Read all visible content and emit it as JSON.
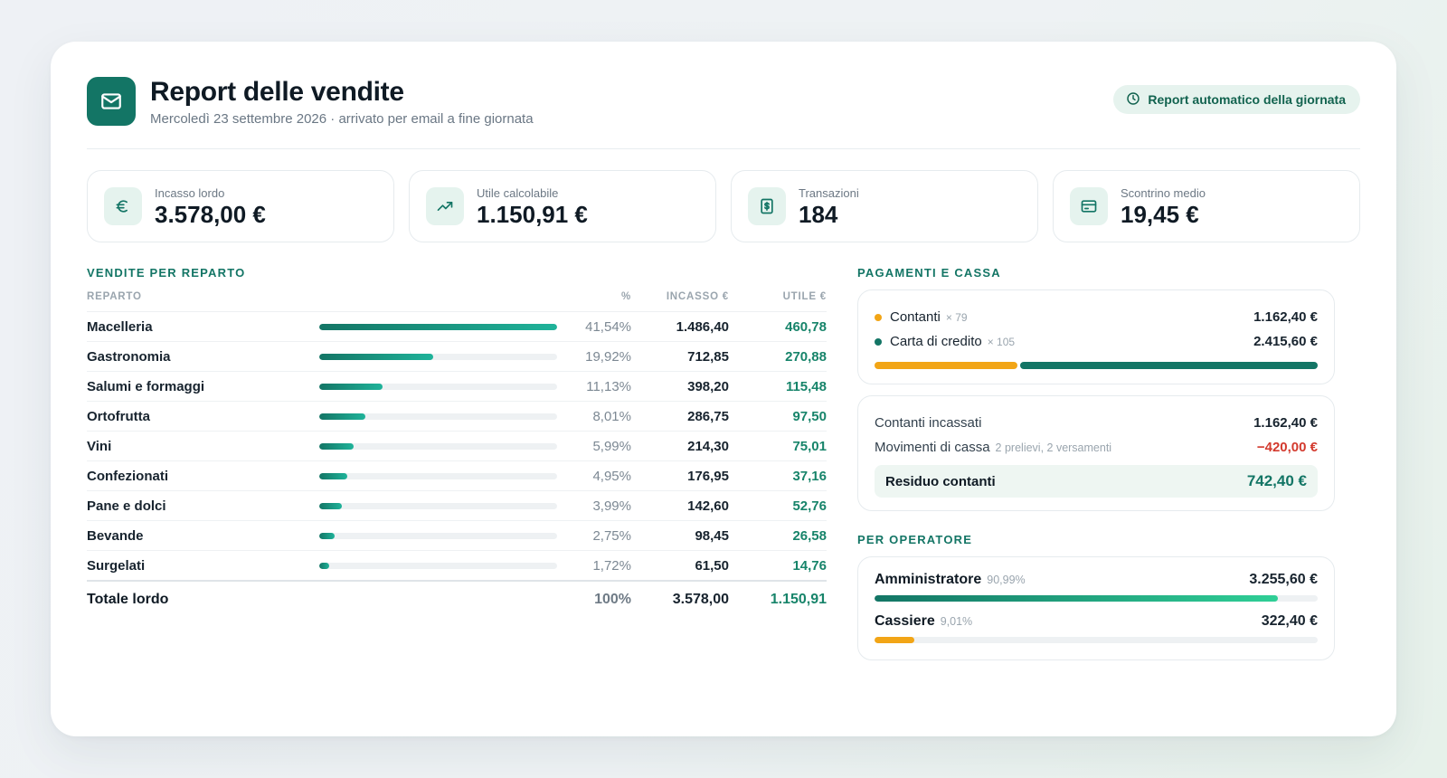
{
  "header": {
    "title": "Report delle vendite",
    "subtitle": "Mercoledì 23 settembre 2026 · arrivato per email a fine giornata",
    "badge": "Report automatico della giornata",
    "logo_icon": "mail-icon",
    "badge_icon": "clock-icon"
  },
  "kpis": [
    {
      "label": "Incasso lordo",
      "value": "3.578,00 €",
      "icon": "euro-icon"
    },
    {
      "label": "Utile calcolabile",
      "value": "1.150,91 €",
      "icon": "trending-up-icon"
    },
    {
      "label": "Transazioni",
      "value": "184",
      "icon": "receipt-icon"
    },
    {
      "label": "Scontrino medio",
      "value": "19,45 €",
      "icon": "card-icon"
    }
  ],
  "vendite": {
    "title": "VENDITE PER REPARTO",
    "columns": {
      "reparto": "REPARTO",
      "pct": "%",
      "incasso": "INCASSO €",
      "utile": "UTILE €"
    },
    "rows": [
      {
        "name": "Macelleria",
        "share": 41.54,
        "pct": "41,54%",
        "incasso": "1.486,40",
        "utile": "460,78"
      },
      {
        "name": "Gastronomia",
        "share": 19.92,
        "pct": "19,92%",
        "incasso": "712,85",
        "utile": "270,88"
      },
      {
        "name": "Salumi e formaggi",
        "share": 11.13,
        "pct": "11,13%",
        "incasso": "398,20",
        "utile": "115,48"
      },
      {
        "name": "Ortofrutta",
        "share": 8.01,
        "pct": "8,01%",
        "incasso": "286,75",
        "utile": "97,50"
      },
      {
        "name": "Vini",
        "share": 5.99,
        "pct": "5,99%",
        "incasso": "214,30",
        "utile": "75,01"
      },
      {
        "name": "Confezionati",
        "share": 4.95,
        "pct": "4,95%",
        "incasso": "176,95",
        "utile": "37,16"
      },
      {
        "name": "Pane e dolci",
        "share": 3.99,
        "pct": "3,99%",
        "incasso": "142,60",
        "utile": "52,76"
      },
      {
        "name": "Bevande",
        "share": 2.75,
        "pct": "2,75%",
        "incasso": "98,45",
        "utile": "26,58"
      },
      {
        "name": "Surgelati",
        "share": 1.72,
        "pct": "1,72%",
        "incasso": "61,50",
        "utile": "14,76"
      }
    ],
    "total": {
      "name": "Totale lordo",
      "pct": "100%",
      "incasso": "3.578,00",
      "utile": "1.150,91"
    }
  },
  "pagamenti": {
    "title": "PAGAMENTI E CASSA",
    "methods": [
      {
        "name": "Contanti",
        "count": "× 79",
        "amount": "1.162,40 €",
        "share": 32.49,
        "color": "#f2a516"
      },
      {
        "name": "Carta di credito",
        "count": "× 105",
        "amount": "2.415,60 €",
        "share": 67.51,
        "color": "#137565"
      }
    ],
    "cassa": {
      "incassati_label": "Contanti incassati",
      "incassati_value": "1.162,40 €",
      "movimenti_label": "Movimenti di cassa",
      "movimenti_note": "2 prelievi, 2 versamenti",
      "movimenti_value": "−420,00 €",
      "residuo_label": "Residuo contanti",
      "residuo_value": "742,40 €"
    }
  },
  "operatori": {
    "title": "PER OPERATORE",
    "items": [
      {
        "name": "Amministratore",
        "pct": "90,99%",
        "share": 90.99,
        "amount": "3.255,60 €",
        "color": "linear-gradient(90deg,#137565,#2fcf96)"
      },
      {
        "name": "Cassiere",
        "pct": "9,01%",
        "share": 9.01,
        "amount": "322,40 €",
        "color": "#f2a516"
      }
    ]
  },
  "colors": {
    "accent": "#137565",
    "positive": "#17846a",
    "negative": "#d33a2e",
    "cash": "#f2a516"
  }
}
